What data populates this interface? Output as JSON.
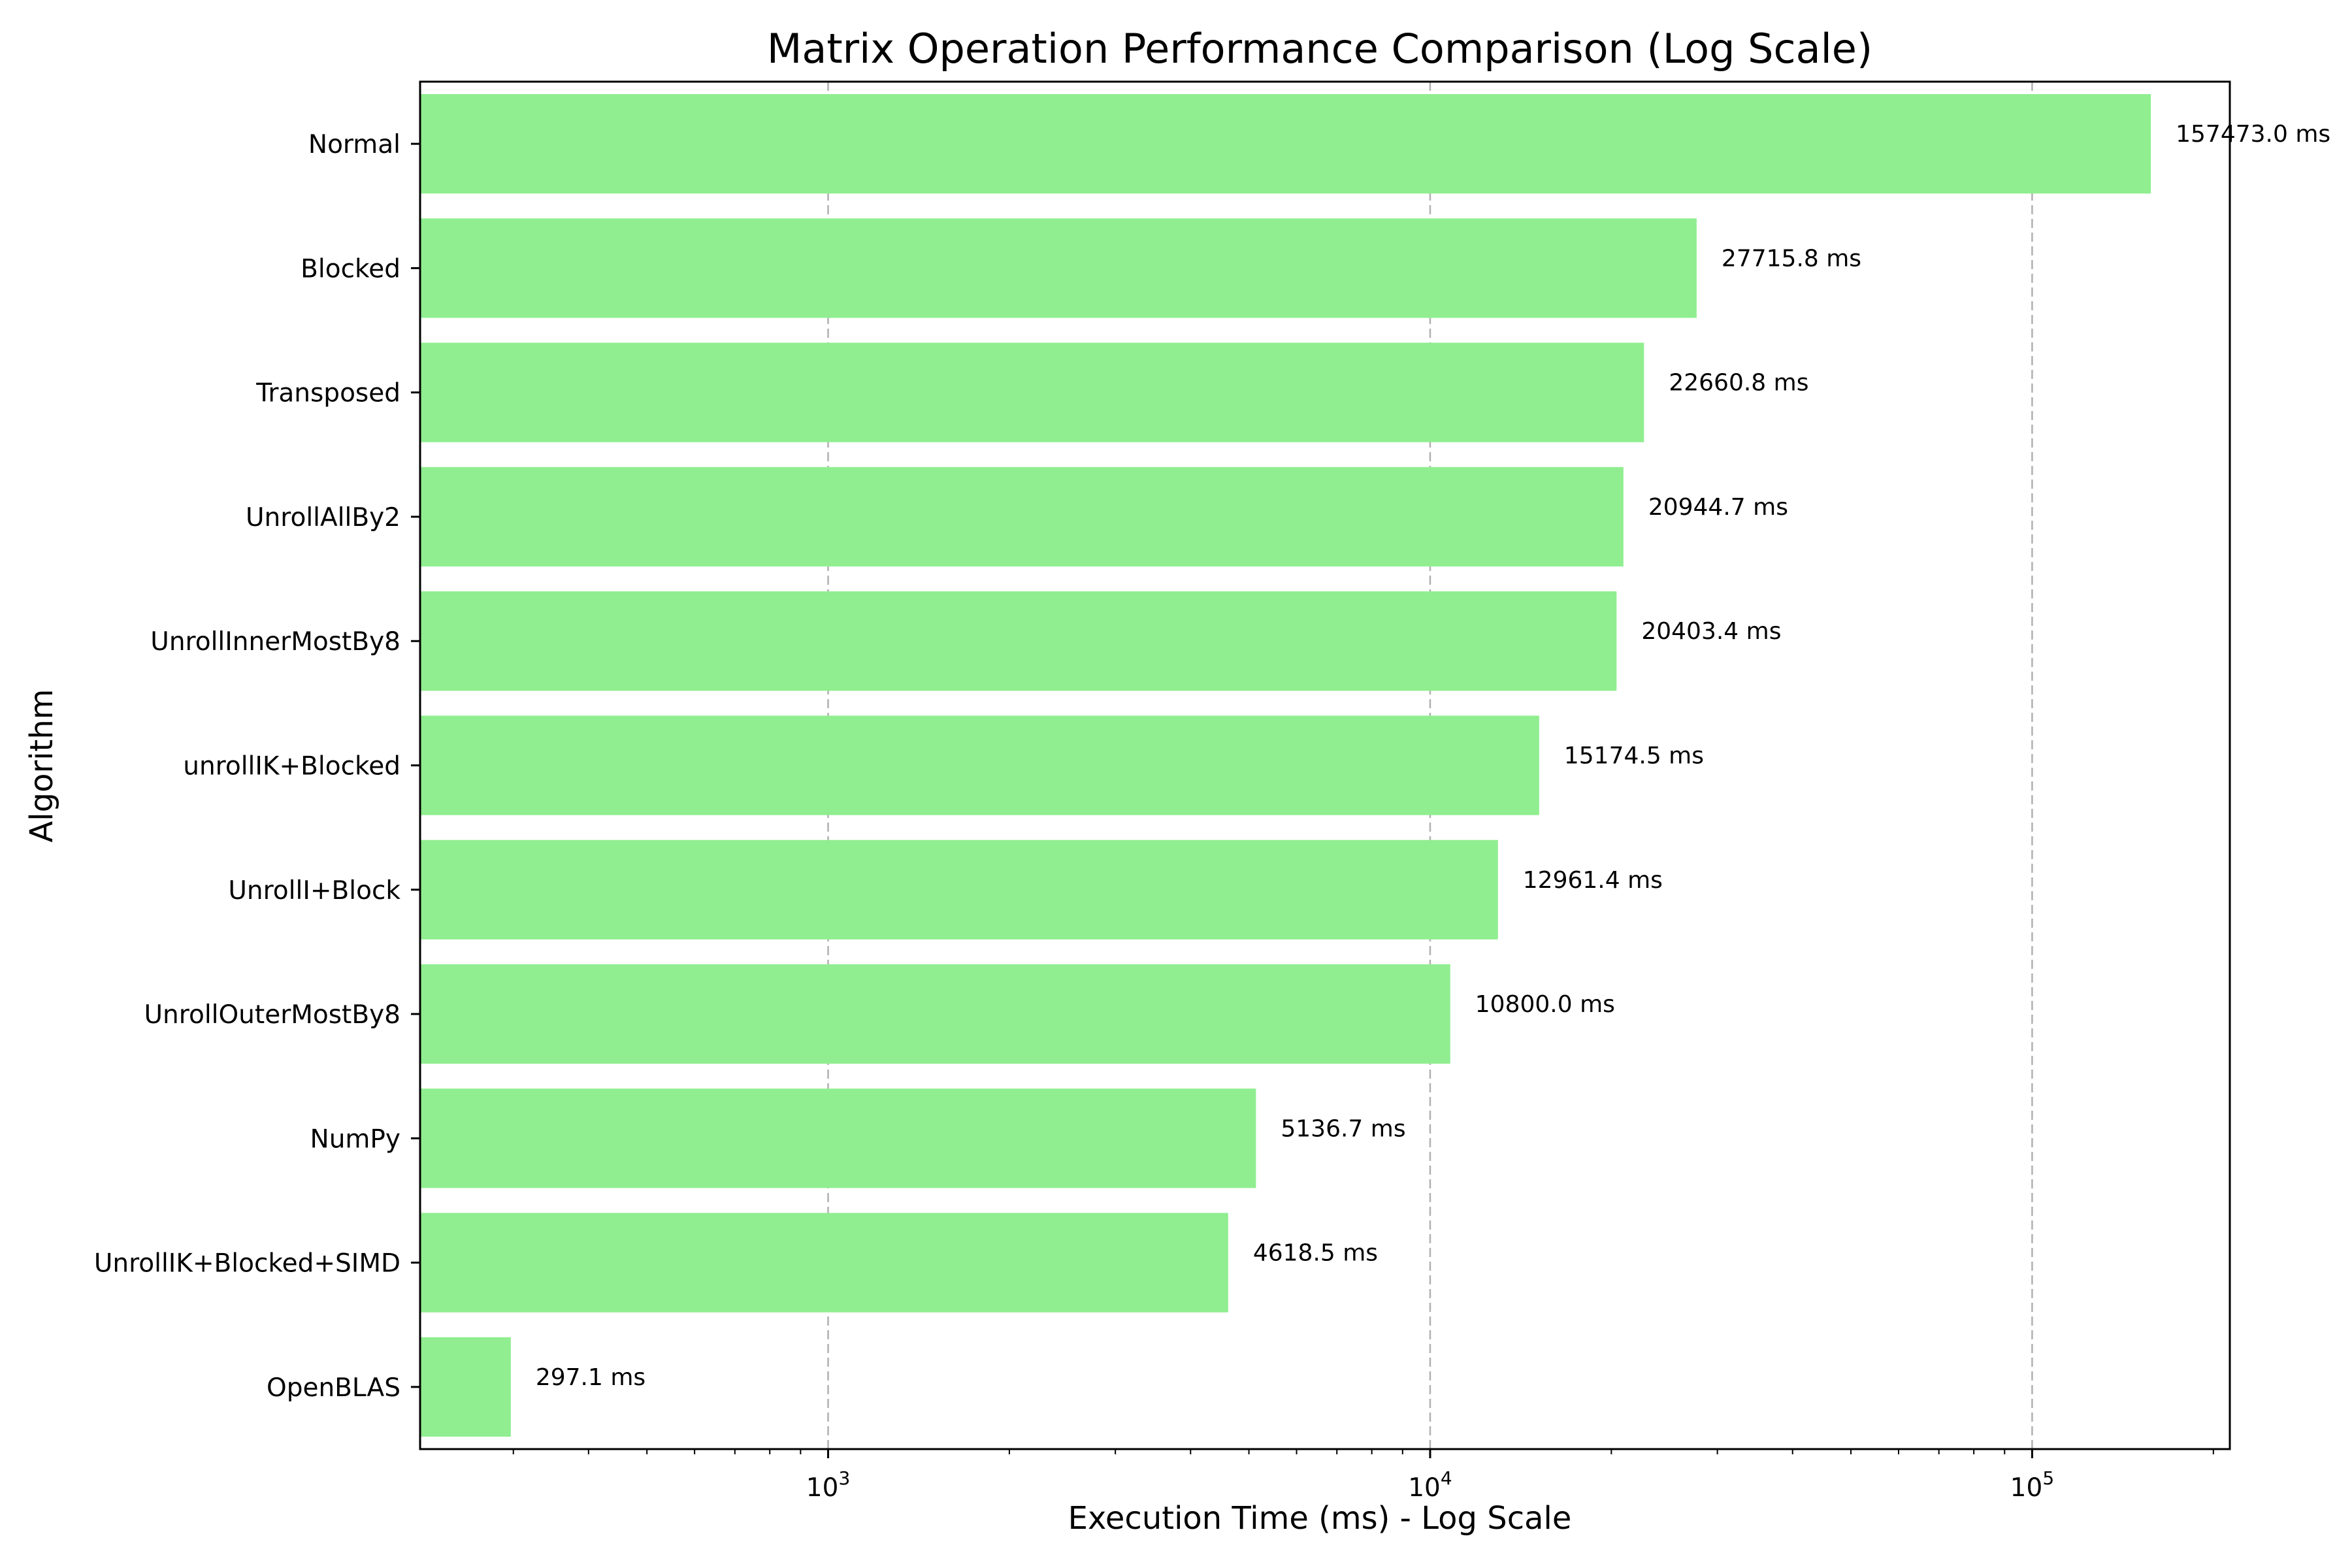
{
  "chart_data": {
    "type": "bar",
    "orientation": "horizontal",
    "title": "Matrix Operation Performance Comparison (Log Scale)",
    "xlabel": "Execution Time (ms) - Log Scale",
    "ylabel": "Algorithm",
    "x_scale": "log",
    "xlim": [
      210,
      213000
    ],
    "grid": "vertical dashed at major ticks",
    "bar_color": "#90ee90",
    "categories": [
      "Normal",
      "Blocked",
      "Transposed",
      "UnrollAllBy2",
      "UnrollInnerMostBy8",
      "unrollIK+Blocked",
      "UnrollI+Block",
      "UnrollOuterMostBy8",
      "NumPy",
      "UnrollIK+Blocked+SIMD",
      "OpenBLAS"
    ],
    "values": [
      157473.0,
      27715.8,
      22660.8,
      20944.7,
      20403.4,
      15174.5,
      12961.4,
      10800.0,
      5136.7,
      4618.5,
      297.1
    ],
    "data_labels": [
      "157473.0 ms",
      "27715.8 ms",
      "22660.8 ms",
      "20944.7 ms",
      "20403.4 ms",
      "15174.5 ms",
      "12961.4 ms",
      "10800.0 ms",
      "5136.7 ms",
      "4618.5 ms",
      "297.1 ms"
    ],
    "x_major_ticks": [
      {
        "value": 1000,
        "base": "10",
        "exp": "3"
      },
      {
        "value": 10000,
        "base": "10",
        "exp": "4"
      },
      {
        "value": 100000,
        "base": "10",
        "exp": "5"
      }
    ]
  }
}
